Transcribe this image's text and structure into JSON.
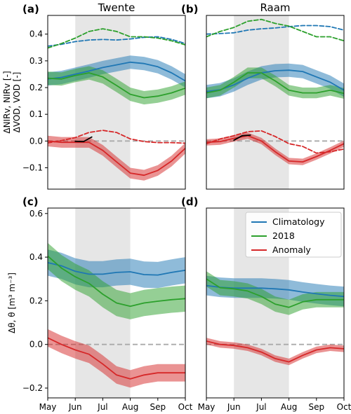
{
  "colors": {
    "climatology": "#1f77b4",
    "y2018": "#2ca02c",
    "anomaly": "#d62728",
    "drought_shade": "#e6e6e6",
    "zero_line": "#aaaaaa"
  },
  "chart_data": [
    {
      "id": "a",
      "panel_label": "(a)",
      "title": "Twente",
      "type": "line",
      "xlim": [
        0,
        5
      ],
      "ylim": [
        -0.18,
        0.47
      ],
      "shade_x": [
        1,
        3
      ],
      "yticks": [
        -0.1,
        0.0,
        0.1,
        0.2,
        0.3,
        0.4
      ],
      "ytick_labels": [
        "−0.1",
        "0.0",
        "0.1",
        "0.2",
        "0.3",
        "0.4"
      ],
      "ylabel": [
        "ΔNIRv, NIRv [-]",
        "ΔVOD, VOD [-]"
      ],
      "series": [
        {
          "key": "vod_clim",
          "color_key": "climatology",
          "style": "dashed",
          "x": [
            0,
            0.5,
            1,
            1.5,
            2,
            2.5,
            3,
            3.5,
            4,
            4.5,
            5
          ],
          "y": [
            0.355,
            0.362,
            0.372,
            0.378,
            0.38,
            0.378,
            0.382,
            0.388,
            0.39,
            0.38,
            0.365
          ]
        },
        {
          "key": "vod_2018",
          "color_key": "y2018",
          "style": "dashed",
          "x": [
            0,
            0.5,
            1,
            1.5,
            2,
            2.5,
            3,
            3.5,
            4,
            4.5,
            5
          ],
          "y": [
            0.348,
            0.365,
            0.385,
            0.41,
            0.42,
            0.41,
            0.39,
            0.39,
            0.385,
            0.375,
            0.36
          ]
        },
        {
          "key": "nirv_clim",
          "color_key": "climatology",
          "style": "solid",
          "band": 0.025,
          "x": [
            0,
            0.5,
            1,
            1.5,
            2,
            2.5,
            3,
            3.5,
            4,
            4.5,
            5
          ],
          "y": [
            0.232,
            0.238,
            0.25,
            0.262,
            0.275,
            0.285,
            0.295,
            0.29,
            0.278,
            0.255,
            0.225
          ]
        },
        {
          "key": "nirv_2018",
          "color_key": "y2018",
          "style": "solid",
          "band": 0.025,
          "x": [
            0,
            0.5,
            1,
            1.5,
            2,
            2.5,
            3,
            3.5,
            4,
            4.5,
            5
          ],
          "y": [
            0.235,
            0.232,
            0.245,
            0.255,
            0.24,
            0.208,
            0.175,
            0.162,
            0.168,
            0.18,
            0.198
          ]
        },
        {
          "key": "nirv_anom",
          "color_key": "anomaly",
          "style": "solid",
          "band": 0.02,
          "x": [
            0,
            0.5,
            1,
            1.5,
            2,
            2.5,
            3,
            3.5,
            4,
            4.5,
            5
          ],
          "y": [
            0.0,
            -0.005,
            -0.005,
            -0.005,
            -0.035,
            -0.078,
            -0.12,
            -0.128,
            -0.11,
            -0.075,
            -0.027
          ]
        },
        {
          "key": "vod_anom",
          "color_key": "anomaly",
          "style": "dashed",
          "x": [
            0,
            0.5,
            1,
            1.5,
            2,
            2.5,
            3,
            3.5,
            4,
            4.5,
            5
          ],
          "y": [
            -0.007,
            0.002,
            0.013,
            0.032,
            0.04,
            0.032,
            0.008,
            -0.002,
            -0.006,
            -0.006,
            -0.008
          ]
        },
        {
          "key": "black_seg",
          "color": "#000000",
          "style": "solid",
          "x": [
            1,
            1.3,
            1.6
          ],
          "y": [
            -0.001,
            -0.002,
            0.015
          ]
        }
      ]
    },
    {
      "id": "b",
      "panel_label": "(b)",
      "title": "Raam",
      "type": "line",
      "xlim": [
        0,
        5
      ],
      "ylim": [
        -0.18,
        0.47
      ],
      "shade_x": [
        1,
        3
      ],
      "series": [
        {
          "key": "vod_clim",
          "color_key": "climatology",
          "style": "dashed",
          "x": [
            0,
            0.5,
            1,
            1.5,
            2,
            2.5,
            3,
            3.5,
            4,
            4.5,
            5
          ],
          "y": [
            0.4,
            0.402,
            0.405,
            0.415,
            0.42,
            0.423,
            0.428,
            0.432,
            0.432,
            0.428,
            0.415
          ]
        },
        {
          "key": "vod_2018",
          "color_key": "y2018",
          "style": "dashed",
          "x": [
            0,
            0.5,
            1,
            1.5,
            2,
            2.5,
            3,
            3.5,
            4,
            4.5,
            5
          ],
          "y": [
            0.39,
            0.41,
            0.425,
            0.448,
            0.455,
            0.44,
            0.43,
            0.41,
            0.39,
            0.39,
            0.375
          ]
        },
        {
          "key": "nirv_clim",
          "color_key": "climatology",
          "style": "solid",
          "band": 0.025,
          "x": [
            0,
            0.5,
            1,
            1.5,
            2,
            2.5,
            3,
            3.5,
            4,
            4.5,
            5
          ],
          "y": [
            0.185,
            0.192,
            0.21,
            0.235,
            0.255,
            0.263,
            0.265,
            0.26,
            0.24,
            0.22,
            0.19
          ]
        },
        {
          "key": "nirv_2018",
          "color_key": "y2018",
          "style": "solid",
          "band": 0.02,
          "x": [
            0,
            0.5,
            1,
            1.5,
            2,
            2.5,
            3,
            3.5,
            4,
            4.5,
            5
          ],
          "y": [
            0.18,
            0.19,
            0.22,
            0.255,
            0.255,
            0.225,
            0.19,
            0.18,
            0.18,
            0.19,
            0.178
          ]
        },
        {
          "key": "nirv_anom",
          "color_key": "anomaly",
          "style": "solid",
          "band": 0.012,
          "x": [
            0,
            0.5,
            1,
            1.5,
            2,
            2.5,
            3,
            3.5,
            4,
            4.5,
            5
          ],
          "y": [
            -0.005,
            -0.002,
            0.01,
            0.02,
            0.0,
            -0.04,
            -0.075,
            -0.078,
            -0.058,
            -0.035,
            -0.01
          ]
        },
        {
          "key": "vod_anom",
          "color_key": "anomaly",
          "style": "dashed",
          "x": [
            0,
            0.5,
            1,
            1.5,
            2,
            2.5,
            3,
            3.5,
            4,
            4.5,
            5
          ],
          "y": [
            -0.01,
            0.008,
            0.02,
            0.035,
            0.038,
            0.017,
            -0.01,
            -0.02,
            -0.045,
            -0.04,
            -0.03
          ]
        },
        {
          "key": "black_seg",
          "color": "#000000",
          "style": "solid",
          "x": [
            1,
            1.3,
            1.6
          ],
          "y": [
            0.003,
            0.02,
            0.022
          ]
        }
      ]
    },
    {
      "id": "c",
      "panel_label": "(c)",
      "type": "line",
      "xlim": [
        0,
        5
      ],
      "ylim": [
        -0.245,
        0.625
      ],
      "shade_x": [
        1,
        3
      ],
      "yticks": [
        -0.2,
        0.0,
        0.2,
        0.4,
        0.6
      ],
      "ytick_labels": [
        "−0.2",
        "0.0",
        "0.2",
        "0.4",
        "0.6"
      ],
      "ylabel": [
        "Δθ, θ [m³ m⁻³]"
      ],
      "xticks": [
        0,
        1,
        2,
        3,
        4,
        5
      ],
      "xtick_labels": [
        "May",
        "Jun",
        "Jul",
        "Aug",
        "Sep",
        "Oct"
      ],
      "series": [
        {
          "key": "sm_clim",
          "color_key": "climatology",
          "style": "solid",
          "band": 0.06,
          "x": [
            0,
            0.5,
            1,
            1.5,
            2,
            2.5,
            3,
            3.5,
            4,
            4.5,
            5
          ],
          "y": [
            0.375,
            0.36,
            0.335,
            0.322,
            0.322,
            0.33,
            0.333,
            0.32,
            0.318,
            0.33,
            0.34
          ]
        },
        {
          "key": "sm_2018",
          "color_key": "y2018",
          "style": "solid",
          "band": 0.06,
          "x": [
            0,
            0.5,
            1,
            1.5,
            2,
            2.5,
            3,
            3.5,
            4,
            4.5,
            5
          ],
          "y": [
            0.405,
            0.35,
            0.31,
            0.28,
            0.23,
            0.19,
            0.175,
            0.19,
            0.198,
            0.205,
            0.21
          ]
        },
        {
          "key": "sm_anom",
          "color_key": "anomaly",
          "style": "solid",
          "band": 0.04,
          "x": [
            0,
            0.5,
            1,
            1.5,
            2,
            2.5,
            3,
            3.5,
            4,
            4.5,
            5
          ],
          "y": [
            0.03,
            0.0,
            -0.025,
            -0.045,
            -0.09,
            -0.14,
            -0.158,
            -0.14,
            -0.13,
            -0.13,
            -0.13
          ]
        }
      ]
    },
    {
      "id": "d",
      "panel_label": "(d)",
      "type": "line",
      "xlim": [
        0,
        5
      ],
      "ylim": [
        -0.245,
        0.625
      ],
      "shade_x": [
        1,
        3
      ],
      "xticks": [
        0,
        1,
        2,
        3,
        4,
        5
      ],
      "xtick_labels": [
        "May",
        "Jun",
        "Jul",
        "Aug",
        "Sep",
        "Oct"
      ],
      "legend": {
        "position": "top-right",
        "entries": [
          "Climatology",
          "2018",
          "Anomaly"
        ],
        "color_keys": [
          "climatology",
          "y2018",
          "anomaly"
        ]
      },
      "series": [
        {
          "key": "sm_clim",
          "color_key": "climatology",
          "style": "solid",
          "band": 0.045,
          "x": [
            0,
            0.5,
            1,
            1.5,
            2,
            2.5,
            3,
            3.5,
            4,
            4.5,
            5
          ],
          "y": [
            0.27,
            0.262,
            0.258,
            0.258,
            0.258,
            0.255,
            0.25,
            0.24,
            0.232,
            0.225,
            0.22
          ]
        },
        {
          "key": "sm_2018",
          "color_key": "y2018",
          "style": "solid",
          "band": 0.035,
          "x": [
            0,
            0.5,
            1,
            1.5,
            2,
            2.5,
            3,
            3.5,
            4,
            4.5,
            5
          ],
          "y": [
            0.3,
            0.26,
            0.255,
            0.245,
            0.22,
            0.185,
            0.17,
            0.195,
            0.205,
            0.205,
            0.205
          ]
        },
        {
          "key": "sm_anom",
          "color_key": "anomaly",
          "style": "solid",
          "band": 0.015,
          "x": [
            0,
            0.5,
            1,
            1.5,
            2,
            2.5,
            3,
            3.5,
            4,
            4.5,
            5
          ],
          "y": [
            0.015,
            0.0,
            -0.005,
            -0.015,
            -0.035,
            -0.065,
            -0.08,
            -0.05,
            -0.025,
            -0.015,
            -0.02
          ]
        }
      ]
    }
  ]
}
